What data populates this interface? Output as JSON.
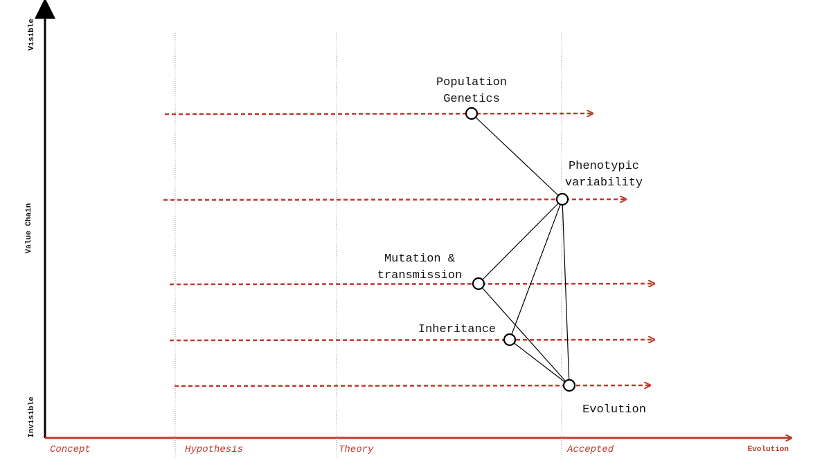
{
  "axes": {
    "y_top": "Visible",
    "y_middle": "Value Chain",
    "y_bottom": "Invisible",
    "x_end": "Evolution"
  },
  "stages": [
    "Concept",
    "Hypothesis",
    "Theory",
    "Accepted"
  ],
  "nodes": [
    {
      "label": [
        "Population",
        "Genetics"
      ]
    },
    {
      "label": [
        "Phenotypic",
        "variability"
      ]
    },
    {
      "label": [
        "Mutation &",
        "transmission"
      ]
    },
    {
      "label": [
        "Inheritance"
      ]
    },
    {
      "label": [
        "Evolution"
      ]
    }
  ]
}
